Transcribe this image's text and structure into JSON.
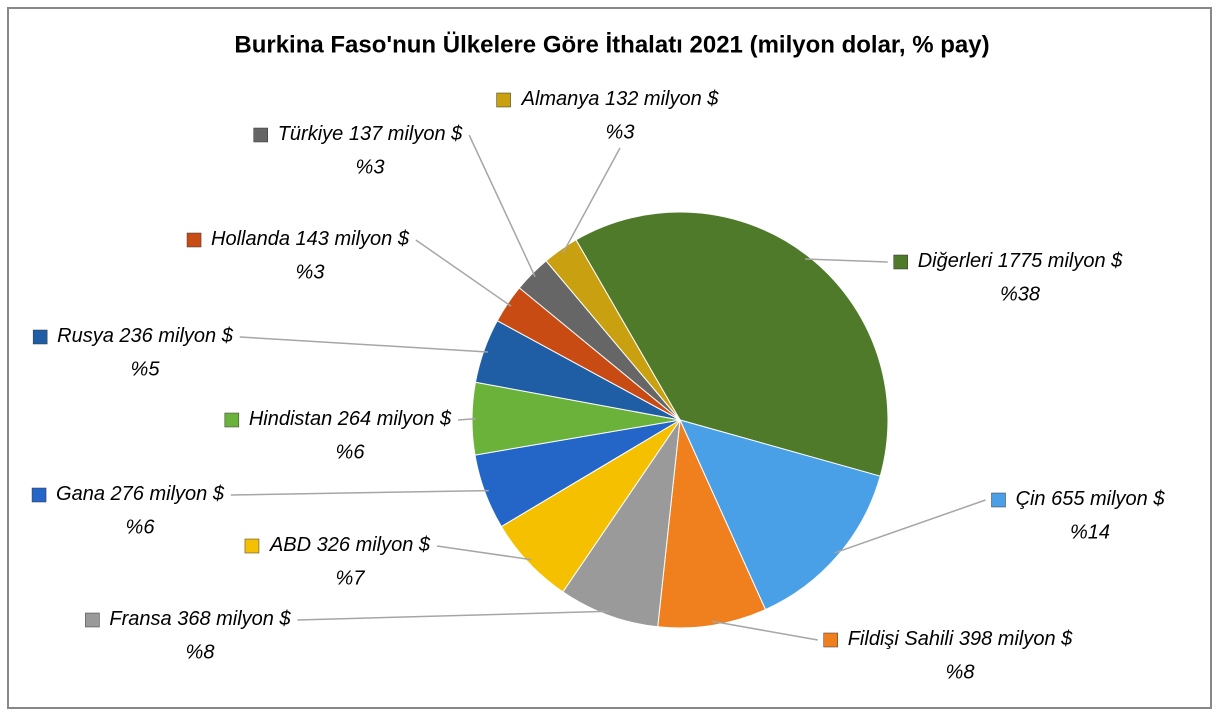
{
  "chart_data": {
    "type": "pie",
    "title": "Burkina Faso'nun Ülkelere Göre İthalatı 2021 (milyon dolar, % pay)",
    "categories": [
      "Diğerleri",
      "Çin",
      "Fildişi Sahili",
      "Fransa",
      "ABD",
      "Gana",
      "Hindistan",
      "Rusya",
      "Hollanda",
      "Türkiye",
      "Almanya"
    ],
    "values": [
      1775,
      655,
      398,
      368,
      326,
      276,
      264,
      236,
      143,
      137,
      132
    ],
    "value_labels": [
      "1775 milyon $",
      "655 milyon $",
      "398 milyon $",
      "368 milyon $",
      "326 milyon $",
      "276 milyon $",
      "264 milyon $",
      "236 milyon $",
      "143 milyon $",
      "137 milyon $",
      "132 milyon $"
    ],
    "percents": [
      38,
      14,
      8,
      8,
      7,
      6,
      6,
      5,
      3,
      3,
      3
    ],
    "percent_labels": [
      "%38",
      "%14",
      "%8",
      "%8",
      "%7",
      "%6",
      "%6",
      "%5",
      "%3",
      "%3",
      "%3"
    ],
    "colors": [
      "#4e7a2a",
      "#4aa0e6",
      "#f07f1e",
      "#9a9a9a",
      "#f5c000",
      "#2466c8",
      "#6ab23a",
      "#1f5ea5",
      "#c84b14",
      "#666666",
      "#c9a010"
    ]
  }
}
